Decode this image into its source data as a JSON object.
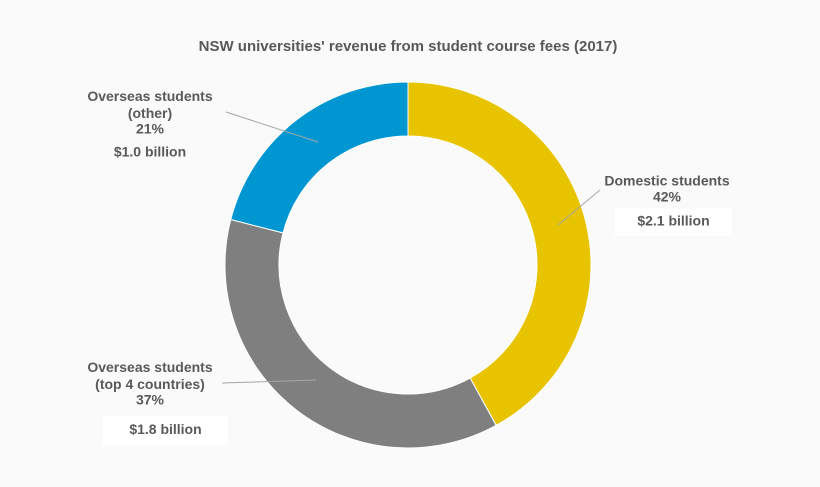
{
  "chart_data": {
    "type": "donut",
    "title": "NSW universities' revenue from student course fees (2017)",
    "categories": [
      "Domestic students",
      "Overseas students (top 4 countries)",
      "Overseas students (other)"
    ],
    "values": [
      42,
      37,
      21
    ],
    "value_labels": [
      "42%",
      "37%",
      "21%"
    ],
    "amounts": [
      "$2.1 billion",
      "$1.8 billion",
      "$1.0 billion"
    ],
    "colors": [
      "#e8c300",
      "#7f7f7f",
      "#0096d2"
    ]
  }
}
